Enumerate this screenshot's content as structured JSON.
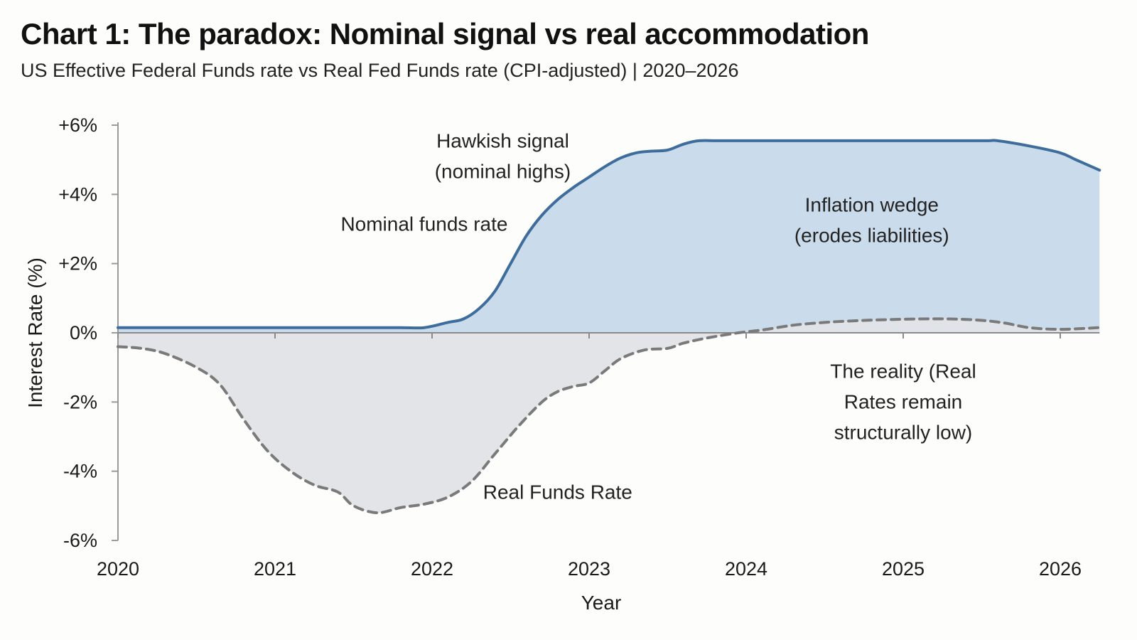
{
  "title": "Chart 1: The paradox: Nominal signal vs real accommodation",
  "subtitle": "US Effective Federal Funds rate vs Real Fed Funds rate (CPI-adjusted) | 2020–2026",
  "chart_data": {
    "type": "area",
    "xlabel": "Year",
    "ylabel": "Interest Rate (%)",
    "xlim": [
      2020,
      2026.25
    ],
    "ylim": [
      -6,
      6
    ],
    "x_ticks": [
      "2020",
      "2021",
      "2022",
      "2023",
      "2024",
      "2025",
      "2026"
    ],
    "y_ticks": [
      {
        "v": 6,
        "label": "+6%"
      },
      {
        "v": 4,
        "label": "+4%"
      },
      {
        "v": 2,
        "label": "+2%"
      },
      {
        "v": 0,
        "label": "0%"
      },
      {
        "v": -2,
        "label": "-2%"
      },
      {
        "v": -4,
        "label": "-4%"
      },
      {
        "v": -6,
        "label": "-6%"
      }
    ],
    "grid": false,
    "series": [
      {
        "name": "Nominal funds rate",
        "color": "#3e6d9c",
        "fill": "#c7daea",
        "style": "solid",
        "points": [
          [
            2020.0,
            0.15
          ],
          [
            2020.5,
            0.15
          ],
          [
            2021.0,
            0.15
          ],
          [
            2021.5,
            0.15
          ],
          [
            2021.8,
            0.15
          ],
          [
            2021.95,
            0.15
          ],
          [
            2022.1,
            0.3
          ],
          [
            2022.2,
            0.4
          ],
          [
            2022.3,
            0.7
          ],
          [
            2022.4,
            1.2
          ],
          [
            2022.5,
            2.0
          ],
          [
            2022.6,
            2.8
          ],
          [
            2022.7,
            3.4
          ],
          [
            2022.8,
            3.85
          ],
          [
            2022.9,
            4.2
          ],
          [
            2023.0,
            4.5
          ],
          [
            2023.1,
            4.8
          ],
          [
            2023.2,
            5.05
          ],
          [
            2023.3,
            5.2
          ],
          [
            2023.4,
            5.25
          ],
          [
            2023.5,
            5.28
          ],
          [
            2023.6,
            5.45
          ],
          [
            2023.7,
            5.55
          ],
          [
            2023.85,
            5.55
          ],
          [
            2024.5,
            5.55
          ],
          [
            2025.0,
            5.55
          ],
          [
            2025.5,
            5.55
          ],
          [
            2025.6,
            5.55
          ],
          [
            2025.8,
            5.4
          ],
          [
            2026.0,
            5.2
          ],
          [
            2026.1,
            5.0
          ],
          [
            2026.25,
            4.7
          ]
        ]
      },
      {
        "name": "Real Funds Rate",
        "color": "#7a7a7a",
        "fill": "#e0e3e7",
        "style": "dashed",
        "points": [
          [
            2020.0,
            -0.4
          ],
          [
            2020.15,
            -0.45
          ],
          [
            2020.3,
            -0.6
          ],
          [
            2020.5,
            -1.0
          ],
          [
            2020.65,
            -1.5
          ],
          [
            2020.8,
            -2.5
          ],
          [
            2020.95,
            -3.4
          ],
          [
            2021.1,
            -4.0
          ],
          [
            2021.25,
            -4.4
          ],
          [
            2021.4,
            -4.6
          ],
          [
            2021.5,
            -5.0
          ],
          [
            2021.65,
            -5.2
          ],
          [
            2021.8,
            -5.05
          ],
          [
            2021.95,
            -4.95
          ],
          [
            2022.1,
            -4.75
          ],
          [
            2022.25,
            -4.3
          ],
          [
            2022.4,
            -3.5
          ],
          [
            2022.55,
            -2.7
          ],
          [
            2022.7,
            -2.0
          ],
          [
            2022.8,
            -1.7
          ],
          [
            2022.9,
            -1.55
          ],
          [
            2023.0,
            -1.45
          ],
          [
            2023.1,
            -1.1
          ],
          [
            2023.2,
            -0.75
          ],
          [
            2023.35,
            -0.5
          ],
          [
            2023.5,
            -0.45
          ],
          [
            2023.6,
            -0.3
          ],
          [
            2023.75,
            -0.15
          ],
          [
            2023.95,
            0.0
          ],
          [
            2024.1,
            0.08
          ],
          [
            2024.3,
            0.22
          ],
          [
            2024.5,
            0.3
          ],
          [
            2024.7,
            0.35
          ],
          [
            2024.9,
            0.38
          ],
          [
            2025.1,
            0.4
          ],
          [
            2025.3,
            0.4
          ],
          [
            2025.5,
            0.36
          ],
          [
            2025.65,
            0.28
          ],
          [
            2025.8,
            0.15
          ],
          [
            2026.0,
            0.1
          ],
          [
            2026.25,
            0.15
          ]
        ]
      }
    ],
    "annotations": [
      {
        "lines": [
          "Hawkish signal",
          "(nominal highs)"
        ],
        "color": "#222222",
        "x": 2022.45,
        "y": 5.35
      },
      {
        "lines": [
          "Nominal funds rate"
        ],
        "color": "#2d5f9a",
        "x": 2021.95,
        "y": 2.95
      },
      {
        "lines": [
          "Inflation wedge",
          "(erodes liabilities)"
        ],
        "color": "#222222",
        "x": 2024.8,
        "y": 3.5
      },
      {
        "lines": [
          "The reality (Real",
          "Rates remain",
          "structurally low)"
        ],
        "color": "#222222",
        "x": 2025.0,
        "y": -1.3
      },
      {
        "lines": [
          "Real Funds Rate"
        ],
        "color": "#8a8a8a",
        "x": 2022.8,
        "y": -4.8
      }
    ]
  }
}
